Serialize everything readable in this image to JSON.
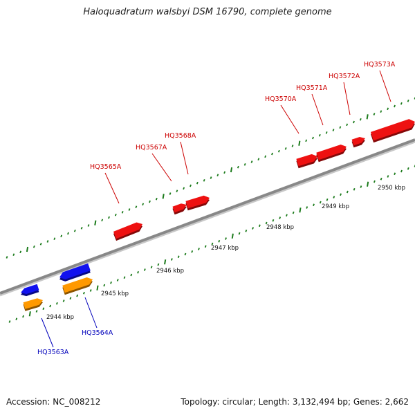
{
  "title": "Haloquadratum walsbyi DSM 16790, complete genome",
  "footer": {
    "accession": "Accession: NC_008212",
    "summary": "Topology: circular; Length: 3,132,494 bp; Genes: 2,662"
  },
  "colors": {
    "forward_gene": "#ee1111",
    "reverse_gene": "#1111ee",
    "rna_gene": "#ff9900",
    "backbone": "#888888",
    "ticks": "#1a7a1a",
    "forward_label": "#cc0000",
    "reverse_label": "#0000bb"
  },
  "scale_labels": [
    "2944 kbp",
    "2945 kbp",
    "2946 kbp",
    "2947 kbp",
    "2948 kbp",
    "2949 kbp",
    "2950 kbp"
  ],
  "gene_labels": {
    "forward": [
      "HQ3565A",
      "HQ3567A",
      "HQ3568A",
      "HQ3570A",
      "HQ3571A",
      "HQ3572A",
      "HQ3573A"
    ],
    "reverse": [
      "HQ3563A",
      "HQ3564A"
    ]
  }
}
